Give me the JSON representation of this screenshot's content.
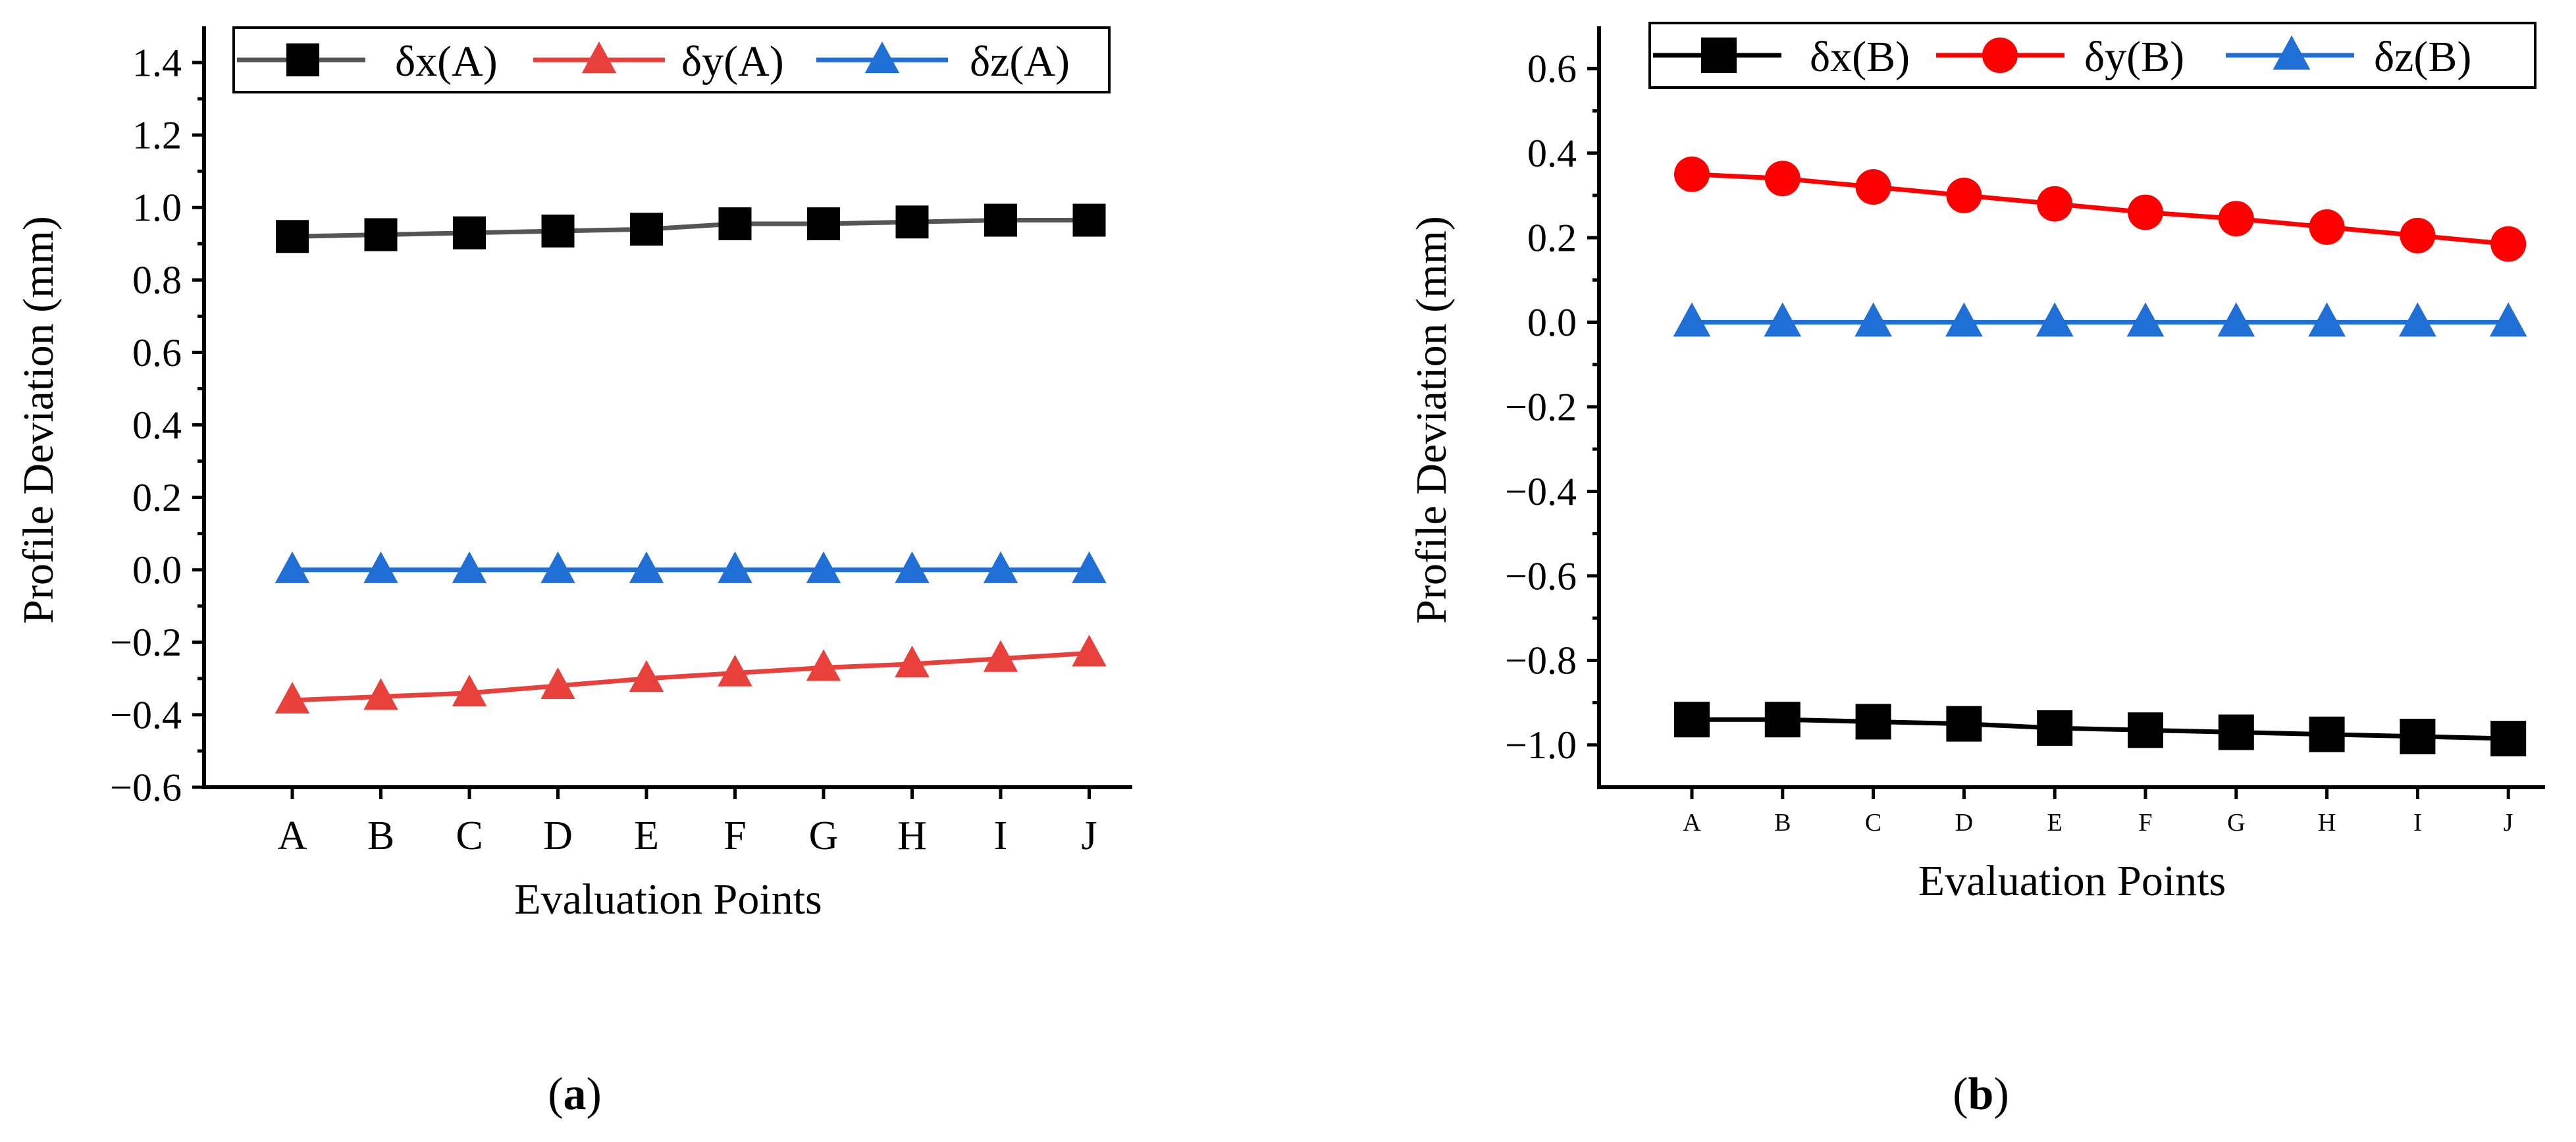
{
  "chart_data": [
    {
      "type": "line",
      "panel_label": "(a)",
      "panel_letter": "a",
      "xlabel": "Evaluation Points",
      "ylabel": "Profile Deviation (mm)",
      "categories": [
        "A",
        "B",
        "C",
        "D",
        "E",
        "F",
        "G",
        "H",
        "I",
        "J"
      ],
      "ylim": [
        -0.6,
        1.5
      ],
      "yticks": [
        -0.6,
        -0.4,
        -0.2,
        0.0,
        0.2,
        0.4,
        0.6,
        0.8,
        1.0,
        1.2,
        1.4
      ],
      "ytick_labels": [
        "−0.6",
        "−0.4",
        "−0.2",
        "0.0",
        "0.2",
        "0.4",
        "0.6",
        "0.8",
        "1.0",
        "1.2",
        "1.4"
      ],
      "grid": false,
      "legend_position": "top",
      "series": [
        {
          "name": "δx(A)",
          "marker": "square",
          "color": "#000000",
          "line_color": "#555555",
          "values": [
            0.92,
            0.925,
            0.93,
            0.935,
            0.94,
            0.955,
            0.955,
            0.96,
            0.965,
            0.965
          ]
        },
        {
          "name": "δy(A)",
          "marker": "triangle",
          "color": "#e8403a",
          "line_color": "#e8403a",
          "values": [
            -0.36,
            -0.35,
            -0.34,
            -0.32,
            -0.3,
            -0.285,
            -0.27,
            -0.26,
            -0.245,
            -0.23
          ]
        },
        {
          "name": "δz(A)",
          "marker": "triangle",
          "color": "#1f6fd6",
          "line_color": "#1f6fd6",
          "values": [
            0,
            0,
            0,
            0,
            0,
            0,
            0,
            0,
            0,
            0
          ]
        }
      ]
    },
    {
      "type": "line",
      "panel_label": "(b)",
      "panel_letter": "b",
      "xlabel": "Evaluation Points",
      "ylabel": "Profile Deviation (mm)",
      "categories": [
        "A",
        "B",
        "C",
        "D",
        "E",
        "F",
        "G",
        "H",
        "I",
        "J"
      ],
      "ylim": [
        -1.1,
        0.7
      ],
      "yticks": [
        -1.0,
        -0.8,
        -0.6,
        -0.4,
        -0.2,
        0.0,
        0.2,
        0.4,
        0.6
      ],
      "ytick_labels": [
        "−1.0",
        "−0.8",
        "−0.6",
        "−0.4",
        "−0.2",
        "0.0",
        "0.2",
        "0.4",
        "0.6"
      ],
      "grid": false,
      "legend_position": "top",
      "series": [
        {
          "name": "δx(B)",
          "marker": "square",
          "color": "#000000",
          "line_color": "#000000",
          "values": [
            -0.94,
            -0.94,
            -0.945,
            -0.95,
            -0.96,
            -0.965,
            -0.97,
            -0.975,
            -0.98,
            -0.985
          ]
        },
        {
          "name": "δy(B)",
          "marker": "circle",
          "color": "#ff0000",
          "line_color": "#ff0000",
          "values": [
            0.35,
            0.34,
            0.32,
            0.3,
            0.28,
            0.26,
            0.245,
            0.225,
            0.205,
            0.185
          ]
        },
        {
          "name": "δz(B)",
          "marker": "triangle",
          "color": "#1f6fd6",
          "line_color": "#1f6fd6",
          "values": [
            0,
            0,
            0,
            0,
            0,
            0,
            0,
            0,
            0,
            0
          ]
        }
      ]
    }
  ]
}
